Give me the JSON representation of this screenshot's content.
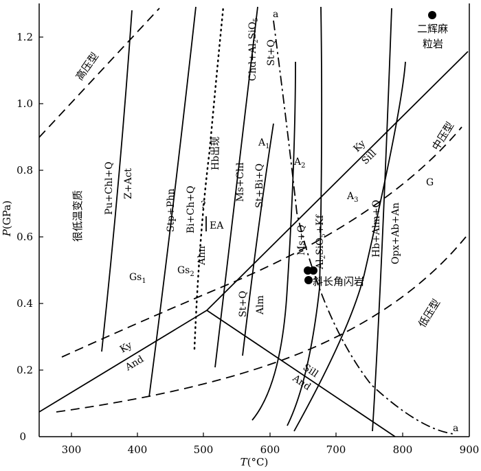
{
  "diagram": {
    "axes": {
      "x": {
        "title_italic": "T",
        "title_rest": "(°C)",
        "range": [
          250,
          900
        ],
        "ticks": [
          "300",
          "400",
          "500",
          "600",
          "700",
          "800",
          "900"
        ]
      },
      "y": {
        "title_italic": "P",
        "title_rest": "(GPa)",
        "range": [
          0,
          1.3
        ],
        "ticks": [
          "0",
          "0.2",
          "0.4",
          "0.6",
          "0.8",
          "1.0",
          "1.2"
        ]
      }
    },
    "field_labels": {
      "high_pressure": "高压型",
      "medium_pressure": "中压型",
      "low_pressure": "低压型",
      "very_low_grade": "很低温变质",
      "gs1_main": "Gs",
      "gs1_sub": "1",
      "gs2_main": "Gs",
      "gs2_sub": "2",
      "ea": "EA",
      "a1_main": "A",
      "a1_sub": "1",
      "a2_main": "A",
      "a2_sub": "2",
      "a3_main": "A",
      "a3_sub": "3",
      "g": "G",
      "hb_appear": "Hb出现",
      "question": "?"
    },
    "reaction_labels": {
      "pu_chl": "Pu+Chl+Q",
      "z_act": "Z+Act",
      "stp_phn": "Stp+Phn",
      "bi_ch": "Bi+Ch+Q",
      "alm": "Alm",
      "ms_chl": "Ms+Chl",
      "st_bi": "St+Bi+Q",
      "chd": "Chd+Al",
      "chd_sub": "2",
      "chd_tail": "SiO",
      "chd_sub2": "5",
      "st_q_top": "St+Q",
      "st_q_low": "St+Q",
      "alm_low": "Alm",
      "ms_q": "Ms+Q",
      "al2sio5_kf_1": "Al",
      "al2sio5_kf_sub1": "2",
      "al2sio5_kf_2": "SiO",
      "al2sio5_kf_sub2": "5",
      "al2sio5_kf_3": "+Kf",
      "hb_alm": "Hb+Alm+Q",
      "opx_ab": "Opx+Ab+An",
      "ky_upper": "Ky",
      "sill_upper": "Sill",
      "ky_lower": "Ky",
      "and_lower": "And",
      "sill_lower": "Sill",
      "and_right": "And",
      "a_top": "a",
      "a_bottom": "a"
    },
    "samples": [
      {
        "label_line1": "二辉麻",
        "label_line2": "粒岩",
        "T": 845,
        "P": 1.27
      },
      {
        "label_line1": "斜长角闪岩",
        "points": [
          [
            654,
            0.5
          ],
          [
            662,
            0.5
          ],
          [
            655,
            0.47
          ]
        ]
      }
    ]
  }
}
